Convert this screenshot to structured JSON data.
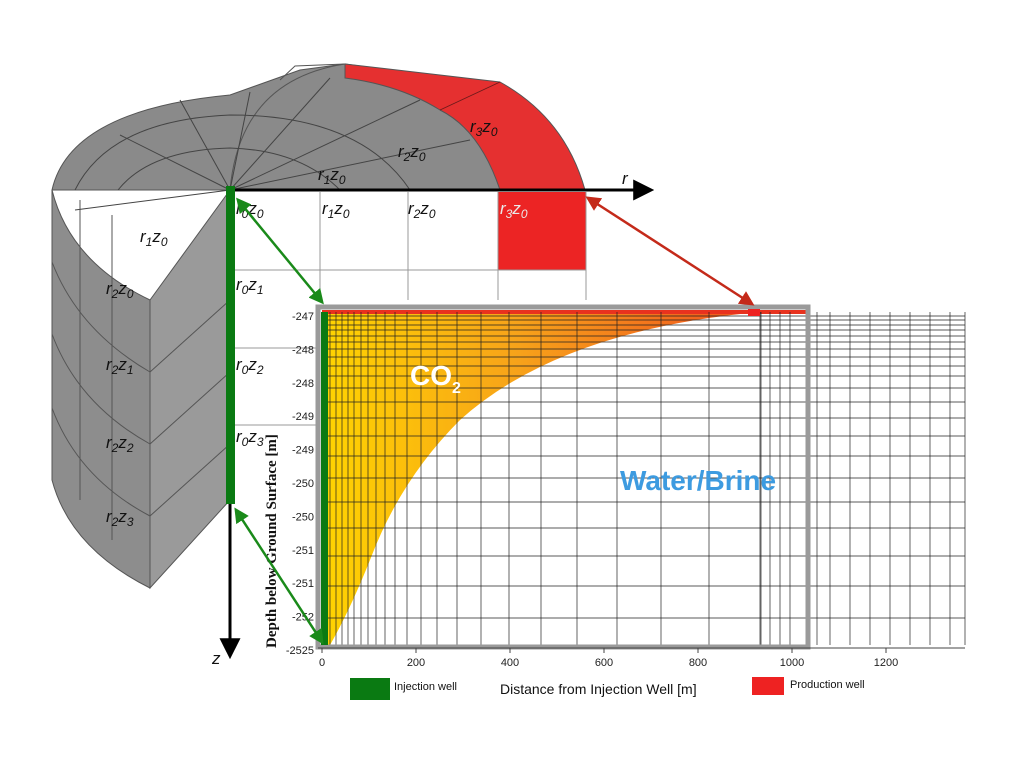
{
  "diagram": {
    "axes3d": {
      "r_label": "r",
      "z_label": "z"
    },
    "labels": {
      "top_r3z0": "r3z0",
      "top_r2z0": "r2z0",
      "top_r1z0": "r1z0",
      "row_r0z0": "r0z0",
      "row_r1z0": "r1z0",
      "row_r2z0": "r2z0",
      "row_r3z0": "r3z0",
      "row_r0z1": "r0z1",
      "row_r0z2": "r0z2",
      "row_r0z3": "r0z3",
      "side_r1z0": "r1z0",
      "side_r2z0": "r2z0",
      "side_r2z1": "r2z1",
      "side_r2z2": "r2z2",
      "side_r2z3": "r2z3"
    },
    "panel": {
      "co2_label": "CO2",
      "brine_label": "Water/Brine",
      "ylabel": "Depth below Ground Surface [m]",
      "xlabel": "Distance from Injection Well [m]",
      "y_ticks": [
        "-247",
        "-248",
        "-248",
        "-249",
        "-249",
        "-250",
        "-250",
        "-251",
        "-251",
        "-252",
        "-2525"
      ],
      "x_ticks": [
        "0",
        "200",
        "400",
        "600",
        "800",
        "1000",
        "1200"
      ],
      "legend": {
        "injection_label": "Injection well",
        "production_label": "Production well",
        "injection_color": "#0a7a12",
        "production_color": "#ee2222"
      }
    },
    "colors": {
      "cylinder": "#8f8f8f",
      "production_sector": "#e53030",
      "plume_start": "#ffd400",
      "plume_end": "#f0501e",
      "injection_arrow": "#1a8a1a",
      "production_arrow": "#c42a1a",
      "panel_frame": "#9a9a9a"
    }
  }
}
